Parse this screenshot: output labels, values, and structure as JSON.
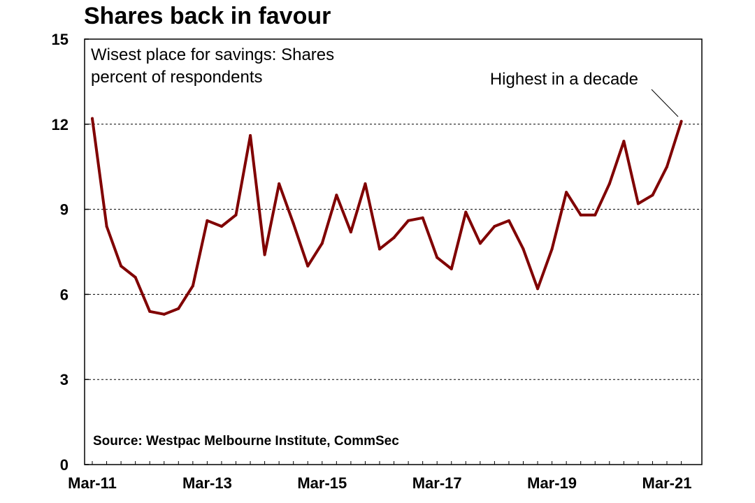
{
  "chart_data": {
    "type": "line",
    "title": "Shares back in favour",
    "subtitle_lines": [
      "Wisest place for savings: Shares",
      "percent of respondents"
    ],
    "annotation": "Highest in a decade",
    "source": "Source: Westpac Melbourne Institute, CommSec",
    "line_color": "#800000",
    "xlabel": "",
    "ylabel": "",
    "ylim": [
      0,
      15
    ],
    "yticks": [
      0,
      3,
      6,
      9,
      12,
      15
    ],
    "grid": true,
    "x_tick_labels": [
      {
        "label": "Mar-11",
        "index": 0
      },
      {
        "label": "Mar-13",
        "index": 8
      },
      {
        "label": "Mar-15",
        "index": 16
      },
      {
        "label": "Mar-17",
        "index": 24
      },
      {
        "label": "Mar-19",
        "index": 32
      },
      {
        "label": "Mar-21",
        "index": 40
      }
    ],
    "series": [
      {
        "name": "Shares",
        "values": [
          12.2,
          8.4,
          7.0,
          6.6,
          5.4,
          5.3,
          5.5,
          6.3,
          8.6,
          8.4,
          8.8,
          11.6,
          7.4,
          9.9,
          8.5,
          7.0,
          7.8,
          9.5,
          8.2,
          9.9,
          7.6,
          8.0,
          8.6,
          8.7,
          7.3,
          6.9,
          8.9,
          7.8,
          8.4,
          8.6,
          7.6,
          6.2,
          7.6,
          9.6,
          8.8,
          8.8,
          9.9,
          11.4,
          9.2,
          9.5,
          10.5,
          12.1
        ]
      }
    ]
  }
}
